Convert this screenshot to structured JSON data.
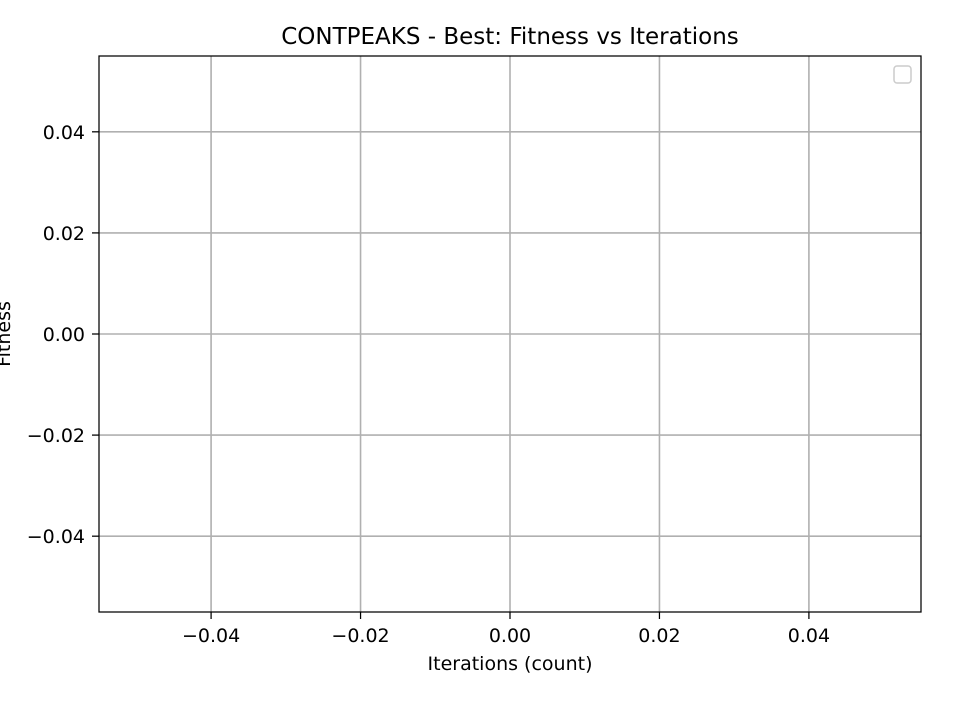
{
  "chart_data": {
    "type": "line",
    "title": "CONTPEAKS - Best: Fitness vs Iterations",
    "xlabel": "Iterations (count)",
    "ylabel": "Fitness",
    "xlim": [
      -0.055,
      0.055
    ],
    "ylim": [
      -0.055,
      0.055
    ],
    "x_ticks": [
      -0.04,
      -0.02,
      0.0,
      0.02,
      0.04
    ],
    "y_ticks": [
      -0.04,
      -0.02,
      0.0,
      0.02,
      0.04
    ],
    "x_tick_labels": [
      "−0.04",
      "−0.02",
      "0.00",
      "0.02",
      "0.04"
    ],
    "y_tick_labels": [
      "−0.04",
      "−0.02",
      "0.00",
      "0.02",
      "0.04"
    ],
    "grid": true,
    "legend": {
      "placement": "top-right",
      "entries": []
    },
    "series": []
  },
  "colors": {
    "grid": "#b0b0b0",
    "axes": "#000000",
    "background": "#ffffff"
  }
}
